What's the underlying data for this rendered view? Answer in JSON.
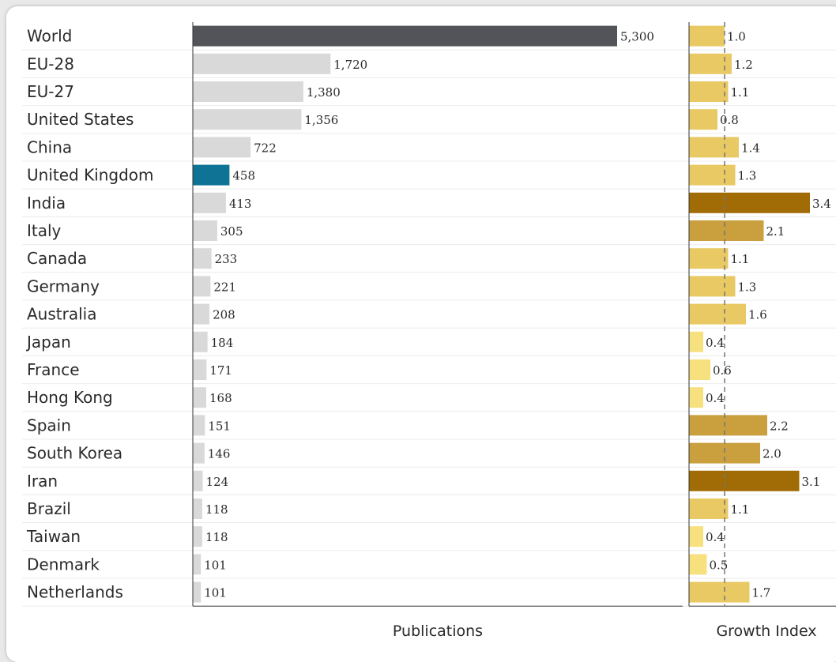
{
  "chart_data": [
    {
      "type": "bar",
      "orientation": "horizontal",
      "title": "",
      "xlabel": "Publications",
      "categories": [
        "World",
        "EU-28",
        "EU-27",
        "United States",
        "China",
        "United Kingdom",
        "India",
        "Italy",
        "Canada",
        "Germany",
        "Australia",
        "Japan",
        "France",
        "Hong Kong",
        "Spain",
        "South Korea",
        "Iran",
        "Brazil",
        "Taiwan",
        "Denmark",
        "Netherlands"
      ],
      "values": [
        5300,
        1720,
        1380,
        1356,
        722,
        458,
        413,
        305,
        233,
        221,
        208,
        184,
        171,
        168,
        151,
        146,
        124,
        118,
        118,
        101,
        101
      ],
      "value_labels": [
        "5,300",
        "1,720",
        "1,380",
        "1,356",
        "722",
        "458",
        "413",
        "305",
        "233",
        "221",
        "208",
        "184",
        "171",
        "168",
        "151",
        "146",
        "124",
        "118",
        "118",
        "101",
        "101"
      ],
      "xlim": [
        0,
        5300
      ],
      "highlight": {
        "World": "#525459",
        "United Kingdom": "#0e7394"
      },
      "default_color": "#d9d9d9"
    },
    {
      "type": "bar",
      "orientation": "horizontal",
      "title": "",
      "xlabel": "Growth Index",
      "categories": [
        "World",
        "EU-28",
        "EU-27",
        "United States",
        "China",
        "United Kingdom",
        "India",
        "Italy",
        "Canada",
        "Germany",
        "Australia",
        "Japan",
        "France",
        "Hong Kong",
        "Spain",
        "South Korea",
        "Iran",
        "Brazil",
        "Taiwan",
        "Denmark",
        "Netherlands"
      ],
      "values": [
        1.0,
        1.2,
        1.1,
        0.8,
        1.4,
        1.3,
        3.4,
        2.1,
        1.1,
        1.3,
        1.6,
        0.4,
        0.6,
        0.4,
        2.2,
        2.0,
        3.1,
        1.1,
        0.4,
        0.5,
        1.7
      ],
      "value_labels": [
        "1.0",
        "1.2",
        "1.1",
        "0.8",
        "1.4",
        "1.3",
        "3.4",
        "2.1",
        "1.1",
        "1.3",
        "1.6",
        "0.4",
        "0.6",
        "0.4",
        "2.2",
        "2.0",
        "3.1",
        "1.1",
        "0.4",
        "0.5",
        "1.7"
      ],
      "reference_line": 1.0,
      "xlim": [
        0,
        3.4
      ],
      "color_scale": [
        "#f7e07e",
        "#e8c964",
        "#c9a03d",
        "#a16c05"
      ]
    }
  ]
}
